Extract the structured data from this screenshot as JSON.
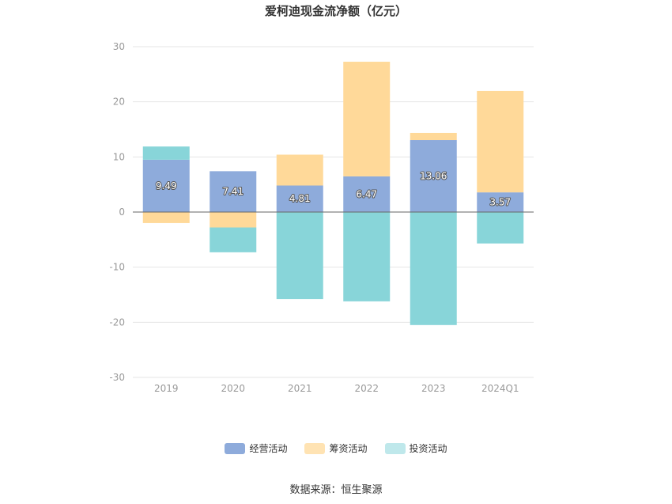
{
  "chart_data": {
    "type": "bar",
    "stacked": true,
    "title": "爱柯迪现金流净额（亿元）",
    "categories": [
      "2019",
      "2020",
      "2021",
      "2022",
      "2023",
      "2024Q1"
    ],
    "ylim": [
      -30,
      30
    ],
    "yticks": [
      30,
      20,
      10,
      0,
      -10,
      -20,
      -30
    ],
    "grid": true,
    "legend_position": "bottom",
    "series": [
      {
        "name": "经营活动",
        "color": "#8eabdb",
        "values": [
          9.49,
          7.41,
          4.81,
          6.47,
          13.06,
          3.57
        ],
        "labels": [
          "9.49",
          "7.41",
          "4.81",
          "6.47",
          "13.06",
          "3.57"
        ]
      },
      {
        "name": "筹资活动",
        "color": "#ffd999",
        "values": [
          -2.0,
          -2.8,
          5.6,
          20.8,
          1.3,
          18.4
        ]
      },
      {
        "name": "投资活动",
        "color": "#88d5d9",
        "values": [
          2.4,
          -4.5,
          -15.8,
          -16.2,
          -20.5,
          -5.7
        ]
      }
    ]
  },
  "legend_items": [
    {
      "label": "经营活动",
      "color": "#8eabdb"
    },
    {
      "label": "筹资活动",
      "color": "#ffe3b3"
    },
    {
      "label": "投资活动",
      "color": "#bfe8eb"
    }
  ],
  "source_note": "数据来源：恒生聚源"
}
